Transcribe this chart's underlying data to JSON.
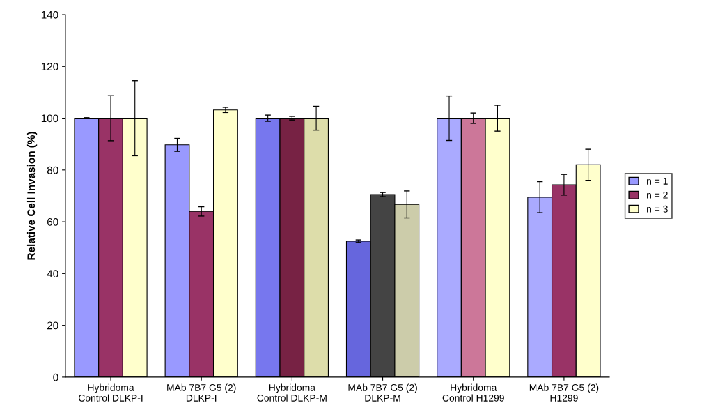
{
  "chart_data": {
    "type": "bar",
    "ylabel": "Relative Cell Invasion (%)",
    "categories": [
      "Hybridoma\nControl DLKP-I",
      "MAb 7B7 G5 (2)\nDLKP-I",
      "Hybridoma\nControl DLKP-M",
      "MAb 7B7 G5 (2)\nDLKP-M",
      "Hybridoma\nControl H1299",
      "MAb 7B7 G5 (2)\nH1299"
    ],
    "series": [
      {
        "name": "n = 1",
        "color": "#9999ff",
        "colors": [
          "#9999ff",
          "#9999ff",
          "#7777ee",
          "#6666dd",
          "#aaaaff",
          "#aaaaff"
        ],
        "values": [
          100,
          89.7,
          100,
          52.5,
          100,
          69.5
        ],
        "errors": [
          0.2,
          2.5,
          1.2,
          0.5,
          8.6,
          6
        ]
      },
      {
        "name": "n = 2",
        "color": "#993366",
        "colors": [
          "#993366",
          "#993366",
          "#772244",
          "#444444",
          "#cc7799",
          "#993366"
        ],
        "values": [
          100,
          64,
          100,
          70.5,
          100,
          74.3
        ],
        "errors": [
          8.7,
          1.8,
          0.7,
          0.8,
          2,
          4
        ]
      },
      {
        "name": "n = 3",
        "color": "#ffffcc",
        "colors": [
          "#ffffcc",
          "#ffffcc",
          "#ddddaa",
          "#ccccaa",
          "#ffffcc",
          "#ffffcc"
        ],
        "values": [
          100,
          103.2,
          100,
          66.7,
          100,
          82
        ],
        "errors": [
          14.5,
          1,
          4.6,
          5.2,
          5,
          6
        ]
      }
    ],
    "ylim": [
      0,
      140
    ],
    "yticks": [
      0,
      20,
      40,
      60,
      80,
      100,
      120,
      140
    ],
    "grid": false,
    "legend": "right"
  }
}
